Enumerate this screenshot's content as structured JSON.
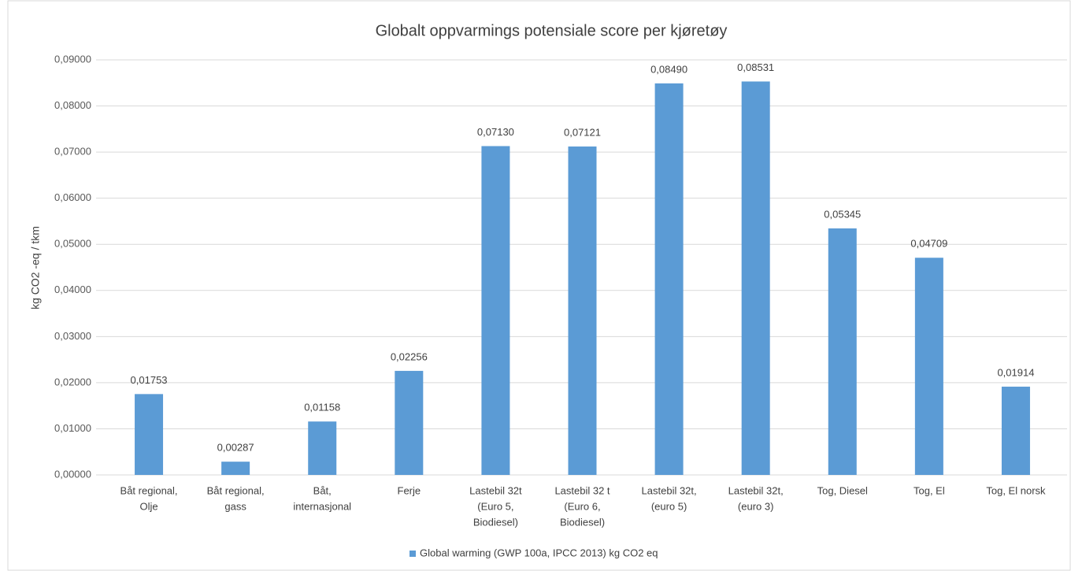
{
  "chart_data": {
    "type": "bar",
    "title": "Globalt oppvarmings potensiale score per kjøretøy",
    "y_label": "kg CO2 -eq / tkm",
    "categories": [
      [
        "Båt regional,",
        "Olje"
      ],
      [
        "Båt regional,",
        "gass"
      ],
      [
        "Båt,",
        "internasjonal"
      ],
      [
        "Ferje"
      ],
      [
        "Lastebil 32t",
        "(Euro 5,",
        "Biodiesel)"
      ],
      [
        "Lastebil 32 t",
        "(Euro 6,",
        "Biodiesel)"
      ],
      [
        "Lastebil 32t,",
        "(euro 5)"
      ],
      [
        "Lastebil 32t,",
        "(euro 3)"
      ],
      [
        "Tog, Diesel"
      ],
      [
        "Tog, El"
      ],
      [
        "Tog, El norsk"
      ]
    ],
    "series": [
      {
        "name": "Global warming (GWP 100a, IPCC 2013) kg CO2 eq",
        "color": "#5b9bd5",
        "values": [
          0.01753,
          0.00287,
          0.01158,
          0.02256,
          0.0713,
          0.07121,
          0.0849,
          0.08531,
          0.05345,
          0.04709,
          0.01914
        ],
        "value_labels": [
          "0,01753",
          "0,00287",
          "0,01158",
          "0,02256",
          "0,07130",
          "0,07121",
          "0,08490",
          "0,08531",
          "0,05345",
          "0,04709",
          "0,01914"
        ]
      }
    ],
    "ylim": [
      0,
      0.09
    ],
    "yticks": [
      {
        "value": 0,
        "label": "0,00000"
      },
      {
        "value": 0.01,
        "label": "0,01000"
      },
      {
        "value": 0.02,
        "label": "0,02000"
      },
      {
        "value": 0.03,
        "label": "0,03000"
      },
      {
        "value": 0.04,
        "label": "0,04000"
      },
      {
        "value": 0.05,
        "label": "0,05000"
      },
      {
        "value": 0.06,
        "label": "0,06000"
      },
      {
        "value": 0.07,
        "label": "0,07000"
      },
      {
        "value": 0.08,
        "label": "0,08000"
      },
      {
        "value": 0.09,
        "label": "0,09000"
      }
    ],
    "grid": true,
    "legend": "bottom"
  }
}
